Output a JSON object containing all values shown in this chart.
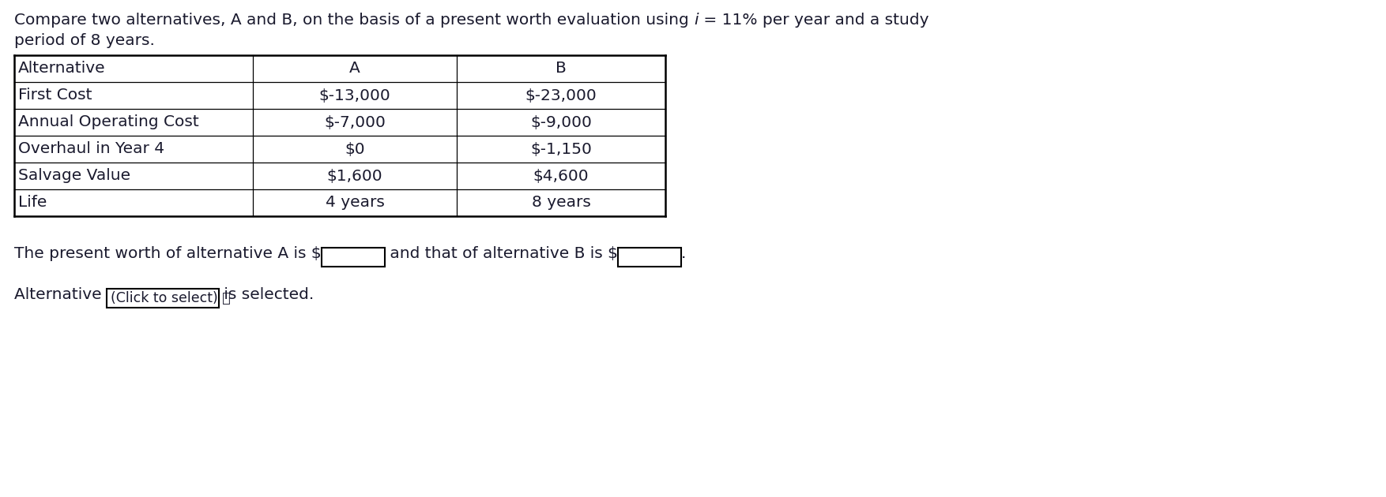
{
  "title_part1": "Compare two alternatives, A and B, on the basis of a present worth evaluation using ",
  "title_italic": "i",
  "title_part2": " = 11% per year and a study",
  "title_line2": "period of 8 years.",
  "table_headers": [
    "Alternative",
    "A",
    "B"
  ],
  "table_rows": [
    [
      "First Cost",
      "$-13,000",
      "$-23,000"
    ],
    [
      "Annual Operating Cost",
      "$-7,000",
      "$-9,000"
    ],
    [
      "Overhaul in Year 4",
      "$0",
      "$-1,150"
    ],
    [
      "Salvage Value",
      "$1,600",
      "$4,600"
    ],
    [
      "Life",
      "4 years",
      "8 years"
    ]
  ],
  "bottom_text1": "The present worth of alternative A is $",
  "bottom_text2": " and that of alternative B is $",
  "bottom_text3": ".",
  "alt_text1": "Alternative ",
  "alt_dropdown": "(Click to select) ⤵",
  "alt_text2": " is selected.",
  "bg_color": "#ffffff",
  "text_color": "#1a1a2e",
  "font_size": 14.5,
  "table_font_size": 14.5
}
